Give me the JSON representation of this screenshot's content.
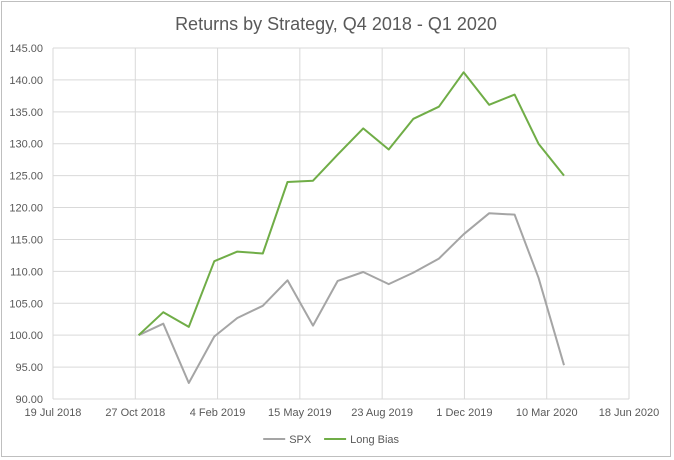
{
  "chart_data": {
    "type": "line",
    "title": "Returns by Strategy, Q4 2018  - Q1 2020",
    "xlabel": "",
    "ylabel": "",
    "ylim": [
      90,
      145
    ],
    "yticks": [
      "90.00",
      "95.00",
      "100.00",
      "105.00",
      "110.00",
      "115.00",
      "120.00",
      "125.00",
      "130.00",
      "135.00",
      "140.00",
      "145.00"
    ],
    "xlim": [
      "2018-07-19",
      "2020-06-18"
    ],
    "xticks": [
      {
        "date": "2018-07-19",
        "label": "19 Jul 2018"
      },
      {
        "date": "2018-10-27",
        "label": "27 Oct 2018"
      },
      {
        "date": "2019-02-04",
        "label": "4 Feb 2019"
      },
      {
        "date": "2019-05-15",
        "label": "15 May 2019"
      },
      {
        "date": "2019-08-23",
        "label": "23 Aug 2019"
      },
      {
        "date": "2019-12-01",
        "label": "1 Dec 2019"
      },
      {
        "date": "2020-03-10",
        "label": "10 Mar 2020"
      },
      {
        "date": "2020-06-18",
        "label": "18 Jun 2020"
      }
    ],
    "x": [
      "2018-10-31",
      "2018-11-30",
      "2018-12-31",
      "2019-01-31",
      "2019-02-28",
      "2019-03-31",
      "2019-04-30",
      "2019-05-31",
      "2019-06-30",
      "2019-07-31",
      "2019-08-31",
      "2019-09-30",
      "2019-10-31",
      "2019-11-30",
      "2019-12-31",
      "2020-01-31",
      "2020-02-29",
      "2020-03-31"
    ],
    "series": [
      {
        "name": "SPX",
        "color": "#a5a5a5",
        "values": [
          100.0,
          101.8,
          92.5,
          99.8,
          102.7,
          104.6,
          108.6,
          101.5,
          108.5,
          109.9,
          108.0,
          109.8,
          112.0,
          115.8,
          119.1,
          118.9,
          109.0,
          95.3
        ]
      },
      {
        "name": "Long Bias",
        "color": "#70ad47",
        "values": [
          100.0,
          103.6,
          101.3,
          111.6,
          113.1,
          112.8,
          124.0,
          124.2,
          128.3,
          132.4,
          129.1,
          133.9,
          135.8,
          141.2,
          136.1,
          137.7,
          130.0,
          125.0
        ]
      }
    ],
    "grid": true,
    "legend_position": "bottom"
  }
}
